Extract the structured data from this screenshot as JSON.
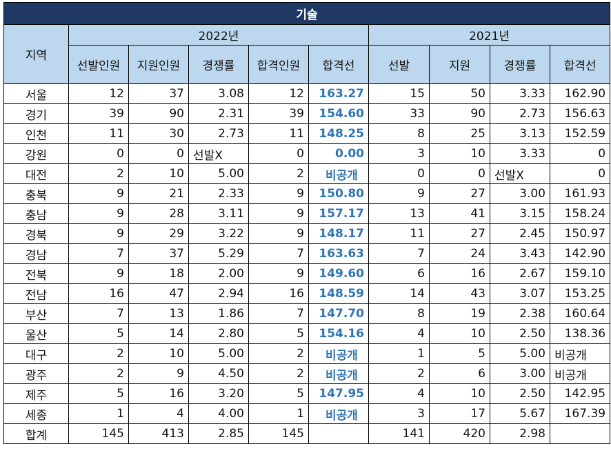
{
  "title": "기술",
  "header": {
    "region": "지역",
    "y2022": "2022년",
    "y2021": "2021년",
    "cols2022": [
      "선발인원",
      "지원인원",
      "경쟁률",
      "합격인원",
      "합격선"
    ],
    "cols2021": [
      "선발",
      "지원",
      "경쟁률",
      "합격선"
    ]
  },
  "rows": [
    {
      "region": "서울",
      "a": "12",
      "b": "37",
      "c": "3.08",
      "d": "12",
      "e": "163.27",
      "f": "15",
      "g": "50",
      "h": "3.33",
      "i": "162.90"
    },
    {
      "region": "경기",
      "a": "39",
      "b": "90",
      "c": "2.31",
      "d": "39",
      "e": "154.60",
      "f": "33",
      "g": "90",
      "h": "2.73",
      "i": "156.63"
    },
    {
      "region": "인천",
      "a": "11",
      "b": "30",
      "c": "2.73",
      "d": "11",
      "e": "148.25",
      "f": "8",
      "g": "25",
      "h": "3.13",
      "i": "152.59"
    },
    {
      "region": "강원",
      "a": "0",
      "b": "0",
      "c": "선발X",
      "d": "0",
      "e": "0.00",
      "f": "3",
      "g": "10",
      "h": "3.33",
      "i": "0"
    },
    {
      "region": "대전",
      "a": "2",
      "b": "10",
      "c": "5.00",
      "d": "2",
      "e": "비공개",
      "f": "0",
      "g": "0",
      "h": "선발X",
      "i": "0"
    },
    {
      "region": "충북",
      "a": "9",
      "b": "21",
      "c": "2.33",
      "d": "9",
      "e": "150.80",
      "f": "9",
      "g": "27",
      "h": "3.00",
      "i": "161.93"
    },
    {
      "region": "충남",
      "a": "9",
      "b": "28",
      "c": "3.11",
      "d": "9",
      "e": "157.17",
      "f": "13",
      "g": "41",
      "h": "3.15",
      "i": "158.24"
    },
    {
      "region": "경북",
      "a": "9",
      "b": "29",
      "c": "3.22",
      "d": "9",
      "e": "148.17",
      "f": "11",
      "g": "27",
      "h": "2.45",
      "i": "150.97"
    },
    {
      "region": "경남",
      "a": "7",
      "b": "37",
      "c": "5.29",
      "d": "7",
      "e": "163.63",
      "f": "7",
      "g": "24",
      "h": "3.43",
      "i": "142.90"
    },
    {
      "region": "전북",
      "a": "9",
      "b": "18",
      "c": "2.00",
      "d": "9",
      "e": "149.60",
      "f": "6",
      "g": "16",
      "h": "2.67",
      "i": "159.10"
    },
    {
      "region": "전남",
      "a": "16",
      "b": "47",
      "c": "2.94",
      "d": "16",
      "e": "148.59",
      "f": "14",
      "g": "43",
      "h": "3.07",
      "i": "153.25"
    },
    {
      "region": "부산",
      "a": "7",
      "b": "13",
      "c": "1.86",
      "d": "7",
      "e": "147.70",
      "f": "8",
      "g": "19",
      "h": "2.38",
      "i": "160.64"
    },
    {
      "region": "울산",
      "a": "5",
      "b": "14",
      "c": "2.80",
      "d": "5",
      "e": "154.16",
      "f": "4",
      "g": "10",
      "h": "2.50",
      "i": "138.36"
    },
    {
      "region": "대구",
      "a": "2",
      "b": "10",
      "c": "5.00",
      "d": "2",
      "e": "비공개",
      "f": "1",
      "g": "5",
      "h": "5.00",
      "i": "비공개"
    },
    {
      "region": "광주",
      "a": "2",
      "b": "9",
      "c": "4.50",
      "d": "2",
      "e": "비공개",
      "f": "2",
      "g": "6",
      "h": "3.00",
      "i": "비공개"
    },
    {
      "region": "제주",
      "a": "5",
      "b": "16",
      "c": "3.20",
      "d": "5",
      "e": "147.95",
      "f": "4",
      "g": "10",
      "h": "2.50",
      "i": "142.95"
    },
    {
      "region": "세종",
      "a": "1",
      "b": "4",
      "c": "4.00",
      "d": "1",
      "e": "비공개",
      "f": "3",
      "g": "17",
      "h": "5.67",
      "i": "167.39"
    }
  ],
  "total": {
    "region": "합계",
    "a": "145",
    "b": "413",
    "c": "2.85",
    "d": "145",
    "e": "",
    "f": "141",
    "g": "420",
    "h": "2.98",
    "i": ""
  },
  "colors": {
    "title_bg": "#1f3864",
    "header_bg": "#bdd7ee",
    "cutoff_text": "#2e75b6"
  }
}
